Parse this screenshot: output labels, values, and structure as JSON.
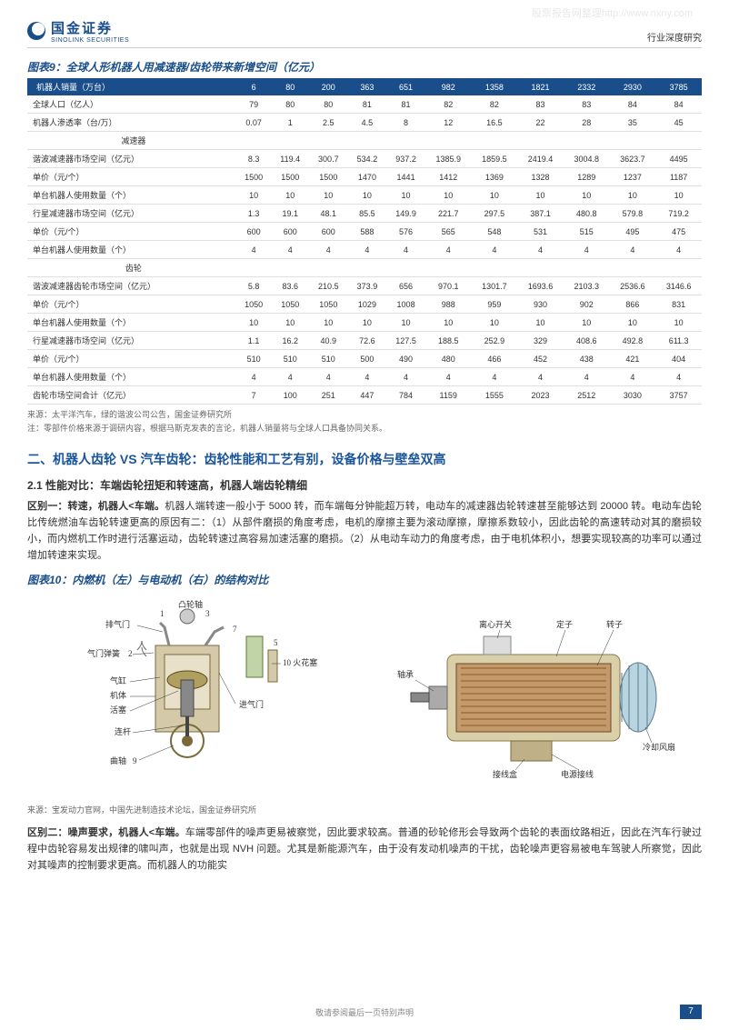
{
  "watermark": "股票报告网整理http://www.nxny.com",
  "header": {
    "logo_cn": "国金证券",
    "logo_en": "SINOLINK SECURITIES",
    "right": "行业深度研究"
  },
  "table9": {
    "title": "图表9：全球人形机器人用减速器/齿轮带来新增空间（亿元）",
    "header_label": "机器人销量（万台）",
    "header_values": [
      "6",
      "80",
      "200",
      "363",
      "651",
      "982",
      "1358",
      "1821",
      "2332",
      "2930",
      "3785"
    ],
    "rows": [
      {
        "label": "全球人口（亿人）",
        "vals": [
          "79",
          "80",
          "80",
          "81",
          "81",
          "82",
          "82",
          "83",
          "83",
          "84",
          "84"
        ]
      },
      {
        "label": "机器人渗透率（台/万）",
        "vals": [
          "0.07",
          "1",
          "2.5",
          "4.5",
          "8",
          "12",
          "16.5",
          "22",
          "28",
          "35",
          "45"
        ]
      },
      {
        "label": "减速器",
        "section": true,
        "vals": [
          "",
          "",
          "",
          "",
          "",
          "",
          "",
          "",
          "",
          "",
          ""
        ]
      },
      {
        "label": "谐波减速器市场空间（亿元）",
        "vals": [
          "8.3",
          "119.4",
          "300.7",
          "534.2",
          "937.2",
          "1385.9",
          "1859.5",
          "2419.4",
          "3004.8",
          "3623.7",
          "4495"
        ]
      },
      {
        "label": "单价（元/个）",
        "vals": [
          "1500",
          "1500",
          "1500",
          "1470",
          "1441",
          "1412",
          "1369",
          "1328",
          "1289",
          "1237",
          "1187"
        ]
      },
      {
        "label": "单台机器人使用数量（个）",
        "vals": [
          "10",
          "10",
          "10",
          "10",
          "10",
          "10",
          "10",
          "10",
          "10",
          "10",
          "10"
        ]
      },
      {
        "label": "行星减速器市场空间（亿元）",
        "vals": [
          "1.3",
          "19.1",
          "48.1",
          "85.5",
          "149.9",
          "221.7",
          "297.5",
          "387.1",
          "480.8",
          "579.8",
          "719.2"
        ]
      },
      {
        "label": "单价（元/个）",
        "vals": [
          "600",
          "600",
          "600",
          "588",
          "576",
          "565",
          "548",
          "531",
          "515",
          "495",
          "475"
        ]
      },
      {
        "label": "单台机器人使用数量（个）",
        "vals": [
          "4",
          "4",
          "4",
          "4",
          "4",
          "4",
          "4",
          "4",
          "4",
          "4",
          "4"
        ]
      },
      {
        "label": "齿轮",
        "section": true,
        "vals": [
          "",
          "",
          "",
          "",
          "",
          "",
          "",
          "",
          "",
          "",
          ""
        ]
      },
      {
        "label": "谐波减速器齿轮市场空间（亿元）",
        "vals": [
          "5.8",
          "83.6",
          "210.5",
          "373.9",
          "656",
          "970.1",
          "1301.7",
          "1693.6",
          "2103.3",
          "2536.6",
          "3146.6"
        ]
      },
      {
        "label": "单价（元/个）",
        "vals": [
          "1050",
          "1050",
          "1050",
          "1029",
          "1008",
          "988",
          "959",
          "930",
          "902",
          "866",
          "831"
        ]
      },
      {
        "label": "单台机器人使用数量（个）",
        "vals": [
          "10",
          "10",
          "10",
          "10",
          "10",
          "10",
          "10",
          "10",
          "10",
          "10",
          "10"
        ]
      },
      {
        "label": "行星减速器市场空间（亿元）",
        "vals": [
          "1.1",
          "16.2",
          "40.9",
          "72.6",
          "127.5",
          "188.5",
          "252.9",
          "329",
          "408.6",
          "492.8",
          "611.3"
        ]
      },
      {
        "label": "单价（元/个）",
        "vals": [
          "510",
          "510",
          "510",
          "500",
          "490",
          "480",
          "466",
          "452",
          "438",
          "421",
          "404"
        ]
      },
      {
        "label": "单台机器人使用数量（个）",
        "vals": [
          "4",
          "4",
          "4",
          "4",
          "4",
          "4",
          "4",
          "4",
          "4",
          "4",
          "4"
        ]
      },
      {
        "label": "齿轮市场空间合计（亿元）",
        "vals": [
          "7",
          "100",
          "251",
          "447",
          "784",
          "1159",
          "1555",
          "2023",
          "2512",
          "3030",
          "3757"
        ]
      }
    ],
    "source": "来源：太平洋汽车，绿的谐波公司公告，国金证券研究所",
    "note": "注：零部件价格来源于调研内容，根据马斯克发表的言论，机器人销量将与全球人口具备协同关系。"
  },
  "section2": {
    "heading": "二、机器人齿轮 VS 汽车齿轮：齿轮性能和工艺有别，设备价格与壁垒双高",
    "sub": "2.1 性能对比：车端齿轮扭矩和转速高，机器人端齿轮精细",
    "p1_bold": "区别一：转速，机器人<车端。",
    "p1_rest": "机器人端转速一般小于 5000 转，而车端每分钟能超万转，电动车的减速器齿轮转速甚至能够达到 20000 转。电动车齿轮比传统燃油车齿轮转速更高的原因有二：（1）从部件磨损的角度考虑，电机的摩擦主要为滚动摩擦，摩擦系数较小，因此齿轮的高速转动对其的磨损较小，而内燃机工作时进行活塞运动，齿轮转速过高容易加速活塞的磨损。（2）从电动车动力的角度考虑，由于电机体积小，想要实现较高的功率可以通过增加转速来实现。"
  },
  "fig10": {
    "title": "图表10：内燃机（左）与电动机（右）的结构对比",
    "left_labels": {
      "cam": "凸轮轴",
      "exhaust": "排气门",
      "spring": "气门弹簧",
      "num2": "2",
      "cylinder": "气缸",
      "body": "机体",
      "piston": "活塞",
      "rod": "连杆",
      "crank": "曲轴",
      "num9": "9",
      "num3": "3",
      "num1": "1",
      "num7": "7",
      "num5": "5",
      "sparkplug": "10 火花塞",
      "intake": "进气门"
    },
    "right_labels": {
      "clutch": "离心开关",
      "stator": "定子",
      "rotor": "转子",
      "bearing": "轴承",
      "terminal": "接线盒",
      "power": "电源接线",
      "fan": "冷却风扇"
    },
    "source": "来源：宝发动力官网，中国先进制造技术论坛，国金证券研究所"
  },
  "p2": {
    "bold": "区别二：噪声要求，机器人<车端。",
    "rest": "车端零部件的噪声更易被察觉，因此要求较高。普通的砂轮修形会导致两个齿轮的表面纹路相近，因此在汽车行驶过程中齿轮容易发出规律的啸叫声，也就是出现 NVH 问题。尤其是新能源汽车，由于没有发动机噪声的干扰，齿轮噪声更容易被电车驾驶人所察觉，因此对其噪声的控制要求更高。而机器人的功能实"
  },
  "footer": {
    "center": "敬请参阅最后一页特别声明",
    "page": "7"
  },
  "colors": {
    "brand": "#1a4e8a",
    "accent": "#1a5599"
  }
}
